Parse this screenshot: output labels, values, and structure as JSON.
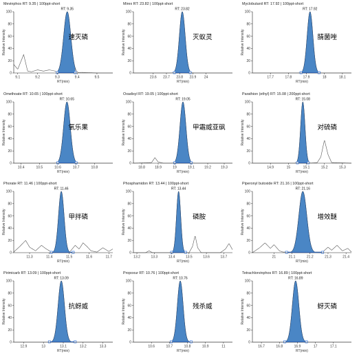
{
  "colors": {
    "peak_fill": "#4a86c5",
    "peak_stroke": "#1f3d66",
    "trace": "#555555",
    "marker": "#3a7be0"
  },
  "chart_data": [
    {
      "type": "area",
      "title": "Mevinphos  RT: 9.35 | 100ppt-short",
      "rt_label": "RT: 9.35",
      "annotation": "速灭磷",
      "xlabel": "RT(min)",
      "ylabel": "Relative Intensity",
      "xlim": [
        9.08,
        9.58
      ],
      "ylim": [
        0,
        100
      ],
      "xticks": [
        9.1,
        9.2,
        9.3,
        9.4,
        9.5
      ],
      "yticks": [
        0,
        20,
        40,
        60,
        80,
        100
      ],
      "peak_rt": 9.35,
      "peak_width": 0.018,
      "peak_range": [
        9.3,
        9.39
      ],
      "trace": [
        [
          9.08,
          14
        ],
        [
          9.1,
          6
        ],
        [
          9.13,
          30
        ],
        [
          9.15,
          3
        ],
        [
          9.17,
          2
        ],
        [
          9.2,
          5
        ],
        [
          9.23,
          3
        ],
        [
          9.26,
          5
        ],
        [
          9.29,
          3
        ],
        [
          9.31,
          1
        ],
        [
          9.33,
          0
        ],
        [
          9.39,
          0
        ],
        [
          9.42,
          1
        ],
        [
          9.5,
          0
        ],
        [
          9.58,
          0
        ]
      ]
    },
    {
      "type": "area",
      "title": "Mirex  RT: 23.82 | 100ppt-short",
      "rt_label": "RT: 23.82",
      "annotation": "灭蚁灵",
      "xlabel": "RT(min)",
      "ylabel": "Relative Intensity",
      "xlim": [
        23.45,
        24.2
      ],
      "ylim": [
        0,
        100
      ],
      "xticks": [
        23.6,
        23.7,
        23.8,
        23.9,
        24.0
      ],
      "yticks": [
        0,
        20,
        40,
        60,
        80,
        100
      ],
      "peak_rt": 23.82,
      "peak_width": 0.022,
      "peak_range": [
        23.76,
        23.88
      ],
      "trace": [
        [
          23.45,
          0
        ],
        [
          24.2,
          0
        ]
      ]
    },
    {
      "type": "area",
      "title": "Myclobutanil  RT: 17.92 | 100ppt-short",
      "rt_label": "RT: 17.92",
      "annotation": "腈菌唑",
      "xlabel": "RT(min)",
      "ylabel": "Relative Intensity",
      "xlim": [
        17.6,
        18.15
      ],
      "ylim": [
        0,
        100
      ],
      "xticks": [
        17.7,
        17.8,
        17.9,
        18.0,
        18.1
      ],
      "yticks": [
        0,
        20,
        40,
        60,
        80,
        100
      ],
      "peak_rt": 17.92,
      "peak_width": 0.016,
      "peak_range": [
        17.87,
        17.97
      ],
      "trace": [
        [
          17.6,
          0
        ],
        [
          18.15,
          0
        ]
      ]
    },
    {
      "type": "area",
      "title": "Omethoate  RT: 10.65 | 100ppt-short",
      "rt_label": "RT: 10.65",
      "annotation": "氧乐果",
      "xlabel": "RT(min)",
      "ylabel": "Relative Intensity",
      "xlim": [
        10.36,
        10.9
      ],
      "ylim": [
        0,
        100
      ],
      "xticks": [
        10.4,
        10.5,
        10.6,
        10.7,
        10.8
      ],
      "yticks": [
        0,
        20,
        40,
        60,
        80,
        100
      ],
      "peak_rt": 10.65,
      "peak_width": 0.018,
      "peak_range": [
        10.6,
        10.7
      ],
      "trace": [
        [
          10.36,
          0
        ],
        [
          10.9,
          0
        ]
      ]
    },
    {
      "type": "area",
      "title": "Oxadixyl  RT: 19.05 | 100ppt-short",
      "rt_label": "RT: 19.05",
      "annotation": "甲霜威亚砜",
      "xlabel": "RT(min)",
      "ylabel": "Relative Intensity",
      "xlim": [
        18.75,
        19.35
      ],
      "ylim": [
        0,
        100
      ],
      "xticks": [
        18.8,
        18.9,
        19.0,
        19.1,
        19.2,
        19.3
      ],
      "yticks": [
        0,
        20,
        40,
        60,
        80,
        100
      ],
      "peak_rt": 19.05,
      "peak_width": 0.018,
      "peak_range": [
        19.0,
        19.1
      ],
      "trace": [
        [
          18.75,
          0
        ],
        [
          18.86,
          1
        ],
        [
          18.88,
          9
        ],
        [
          18.9,
          2
        ],
        [
          18.93,
          0
        ],
        [
          19.35,
          0
        ]
      ]
    },
    {
      "type": "area",
      "title": "Parathion (ethyl)  RT: 15.08 | 200ppt-short",
      "rt_label": "RT: 15.08",
      "annotation": "对硫磷",
      "xlabel": "RT(min)",
      "ylabel": "Relative Intensity",
      "xlim": [
        14.8,
        15.35
      ],
      "ylim": [
        0,
        100
      ],
      "xticks": [
        14.9,
        15.0,
        15.1,
        15.2,
        15.3
      ],
      "yticks": [
        0,
        20,
        40,
        60,
        80,
        100
      ],
      "peak_rt": 15.08,
      "peak_width": 0.012,
      "peak_range": [
        15.05,
        15.11
      ],
      "trace": [
        [
          14.8,
          0
        ],
        [
          15.12,
          0
        ],
        [
          15.16,
          1
        ],
        [
          15.18,
          10
        ],
        [
          15.2,
          38
        ],
        [
          15.22,
          14
        ],
        [
          15.24,
          1
        ],
        [
          15.35,
          0
        ]
      ]
    },
    {
      "type": "area",
      "title": "Phorate  RT: 11.46 | 100ppt-short",
      "rt_label": "RT: 11.46",
      "annotation": "甲拌磷",
      "xlabel": "RT(min)",
      "ylabel": "Relative Intensity",
      "xlim": [
        11.22,
        11.72
      ],
      "ylim": [
        0,
        100
      ],
      "xticks": [
        11.3,
        11.4,
        11.5,
        11.6,
        11.7
      ],
      "yticks": [
        0,
        20,
        40,
        60,
        80,
        100
      ],
      "peak_rt": 11.46,
      "peak_width": 0.014,
      "peak_range": [
        11.41,
        11.52
      ],
      "trace": [
        [
          11.22,
          1
        ],
        [
          11.25,
          10
        ],
        [
          11.28,
          20
        ],
        [
          11.3,
          9
        ],
        [
          11.33,
          3
        ],
        [
          11.36,
          12
        ],
        [
          11.38,
          7
        ],
        [
          11.4,
          3
        ],
        [
          11.42,
          0
        ],
        [
          11.5,
          0
        ],
        [
          11.53,
          12
        ],
        [
          11.55,
          6
        ],
        [
          11.57,
          16
        ],
        [
          11.59,
          10
        ],
        [
          11.61,
          3
        ],
        [
          11.64,
          1
        ],
        [
          11.67,
          8
        ],
        [
          11.7,
          2
        ],
        [
          11.72,
          6
        ]
      ]
    },
    {
      "type": "area",
      "title": "Phosphamidon  RT: 13.44 | 100ppt-short",
      "rt_label": "RT: 13.44",
      "annotation": "磷胺",
      "xlabel": "RT(min)",
      "ylabel": "Relative Intensity",
      "xlim": [
        13.18,
        13.75
      ],
      "ylim": [
        0,
        100
      ],
      "xticks": [
        13.2,
        13.3,
        13.4,
        13.5,
        13.6,
        13.7
      ],
      "yticks": [
        0,
        20,
        40,
        60,
        80,
        100
      ],
      "peak_rt": 13.44,
      "peak_width": 0.012,
      "peak_range": [
        13.4,
        13.48
      ],
      "trace": [
        [
          13.18,
          0
        ],
        [
          13.25,
          0
        ],
        [
          13.27,
          3
        ],
        [
          13.29,
          0
        ],
        [
          13.5,
          0
        ],
        [
          13.52,
          10
        ],
        [
          13.535,
          28
        ],
        [
          13.55,
          8
        ],
        [
          13.57,
          0
        ],
        [
          13.68,
          0
        ],
        [
          13.71,
          6
        ],
        [
          13.73,
          15
        ],
        [
          13.75,
          5
        ]
      ]
    },
    {
      "type": "area",
      "title": "Piperonyl butoxide  RT: 21.16 | 100ppt-short",
      "rt_label": "RT: 21.16",
      "annotation": "增效醚",
      "xlabel": "RT(min)",
      "ylabel": "Relative Intensity",
      "xlim": [
        20.88,
        21.43
      ],
      "ylim": [
        0,
        100
      ],
      "xticks": [
        21.0,
        21.1,
        21.2,
        21.3,
        21.4
      ],
      "yticks": [
        0,
        20,
        40,
        60,
        80,
        100
      ],
      "peak_rt": 21.16,
      "peak_width": 0.022,
      "peak_range": [
        21.07,
        21.27
      ],
      "trace": [
        [
          20.88,
          0
        ],
        [
          20.92,
          8
        ],
        [
          20.95,
          16
        ],
        [
          20.98,
          7
        ],
        [
          21.0,
          13
        ],
        [
          21.03,
          3
        ],
        [
          21.05,
          1
        ],
        [
          21.27,
          1
        ],
        [
          21.3,
          9
        ],
        [
          21.32,
          4
        ],
        [
          21.35,
          12
        ],
        [
          21.38,
          3
        ],
        [
          21.41,
          7
        ],
        [
          21.43,
          1
        ]
      ]
    },
    {
      "type": "area",
      "title": "Pirimicarb  RT: 13.09 | 100ppt-short",
      "rt_label": "RT: 13.09",
      "annotation": "抗蚜威",
      "xlabel": "RT(min)",
      "ylabel": "Relative Intensity",
      "xlim": [
        12.85,
        13.35
      ],
      "ylim": [
        0,
        100
      ],
      "xticks": [
        12.9,
        13.0,
        13.1,
        13.2,
        13.3
      ],
      "yticks": [
        0,
        20,
        40,
        60,
        80,
        100
      ],
      "peak_rt": 13.09,
      "peak_width": 0.016,
      "peak_range": [
        13.03,
        13.16
      ],
      "trace": [
        [
          12.85,
          0
        ],
        [
          13.35,
          0
        ]
      ]
    },
    {
      "type": "area",
      "title": "Propoxur  RT: 10.76 | 100ppt-short",
      "rt_label": "RT: 10.76",
      "annotation": "残杀威",
      "xlabel": "RT(min)",
      "ylabel": "Relative Intensity",
      "xlim": [
        10.5,
        11.05
      ],
      "ylim": [
        0,
        100
      ],
      "xticks": [
        10.6,
        10.7,
        10.8,
        10.9,
        11.0
      ],
      "yticks": [
        0,
        20,
        40,
        60,
        80,
        100
      ],
      "peak_rt": 10.76,
      "peak_width": 0.016,
      "peak_range": [
        10.71,
        10.82
      ],
      "trace": [
        [
          10.5,
          0
        ],
        [
          11.05,
          0
        ]
      ]
    },
    {
      "type": "area",
      "title": "Tetrachlorvinphos  RT: 16.89 | 100ppt-short",
      "rt_label": "RT: 16.89",
      "annotation": "蚜灭磷",
      "xlabel": "RT(min)",
      "ylabel": "Relative Intensity",
      "xlim": [
        16.65,
        17.2
      ],
      "ylim": [
        0,
        100
      ],
      "xticks": [
        16.7,
        16.8,
        16.9,
        17.0,
        17.1
      ],
      "yticks": [
        0,
        20,
        40,
        60,
        80,
        100
      ],
      "peak_rt": 16.89,
      "peak_width": 0.018,
      "peak_range": [
        16.83,
        16.95
      ],
      "trace": [
        [
          16.65,
          0
        ],
        [
          17.2,
          0
        ]
      ]
    }
  ]
}
